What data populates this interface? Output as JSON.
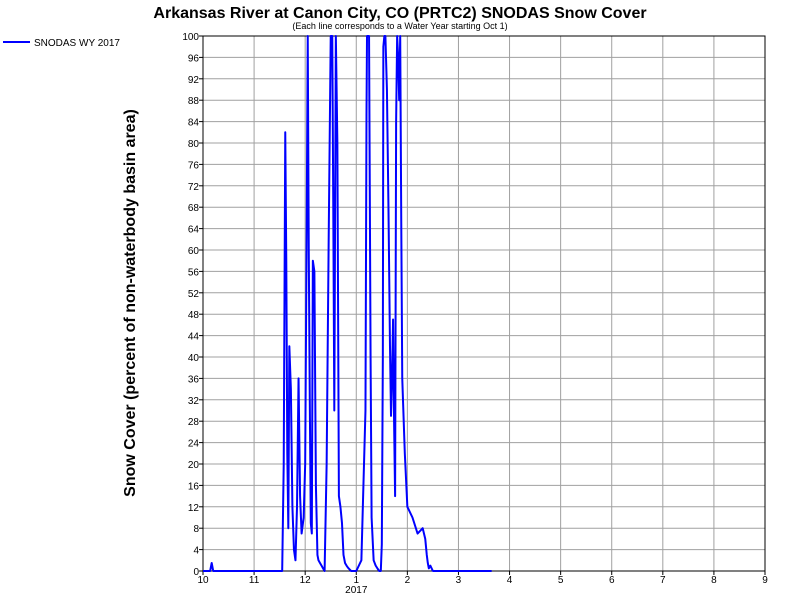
{
  "chart_data": {
    "type": "line",
    "title": "Arkansas River at Canon City, CO (PRTC2) SNODAS Snow Cover",
    "subtitle": "(Each line corresponds to a Water Year starting Oct 1)",
    "xlabel": "",
    "ylabel": "Snow Cover (percent of non-waterbody basin area)",
    "xlim": [
      10,
      21
    ],
    "ylim": [
      0,
      100
    ],
    "grid": true,
    "legend_position": "top-left",
    "x_ticks": [
      {
        "x": 10,
        "label": "10"
      },
      {
        "x": 11,
        "label": "11"
      },
      {
        "x": 12,
        "label": "12"
      },
      {
        "x": 13,
        "label": "1"
      },
      {
        "x": 14,
        "label": "2"
      },
      {
        "x": 15,
        "label": "3"
      },
      {
        "x": 16,
        "label": "4"
      },
      {
        "x": 17,
        "label": "5"
      },
      {
        "x": 18,
        "label": "6"
      },
      {
        "x": 19,
        "label": "7"
      },
      {
        "x": 20,
        "label": "8"
      },
      {
        "x": 21,
        "label": "9"
      }
    ],
    "x_sublabel": {
      "x": 13,
      "label": "2017"
    },
    "y_ticks": [
      0,
      4,
      8,
      12,
      16,
      20,
      24,
      28,
      32,
      36,
      40,
      44,
      48,
      52,
      56,
      60,
      64,
      68,
      72,
      76,
      80,
      84,
      88,
      92,
      96,
      100
    ],
    "series": [
      {
        "name": "SNODAS WY 2017",
        "color": "#0000ff",
        "x": [
          10.0,
          10.14,
          10.17,
          10.2,
          10.24,
          11.55,
          11.58,
          11.61,
          11.63,
          11.65,
          11.67,
          11.69,
          11.72,
          11.75,
          11.78,
          11.81,
          11.84,
          11.87,
          11.9,
          11.93,
          11.97,
          12.0,
          12.03,
          12.05,
          12.07,
          12.09,
          12.11,
          12.13,
          12.15,
          12.18,
          12.21,
          12.24,
          12.26,
          12.29,
          12.32,
          12.35,
          12.38,
          12.42,
          12.46,
          12.5,
          12.53,
          12.55,
          12.57,
          12.6,
          12.63,
          12.66,
          12.69,
          12.72,
          12.75,
          12.78,
          12.81,
          12.84,
          12.87,
          12.9,
          12.93,
          12.96,
          13.0,
          13.1,
          13.18,
          13.2,
          13.21,
          13.25,
          13.28,
          13.3,
          13.34,
          13.38,
          13.42,
          13.45,
          13.48,
          13.5,
          13.52,
          13.53,
          13.55,
          13.57,
          13.6,
          13.63,
          13.66,
          13.68,
          13.7,
          13.72,
          13.74,
          13.76,
          13.78,
          13.8,
          13.82,
          13.84,
          13.86,
          13.88,
          13.9,
          13.95,
          14.0,
          14.1,
          14.2,
          14.3,
          14.35,
          14.38,
          14.4,
          14.42,
          14.45,
          14.5,
          14.55,
          14.6,
          14.65,
          14.7,
          14.75,
          14.8,
          14.85,
          14.9,
          14.92,
          14.95,
          14.97,
          15.0,
          15.03,
          15.06,
          15.1,
          15.15,
          15.2,
          15.25,
          15.3,
          15.35,
          15.4,
          15.45,
          15.5,
          15.55,
          15.6,
          15.65
        ],
        "y": [
          0,
          0,
          1.5,
          0,
          0,
          0,
          20,
          82,
          58,
          22,
          8,
          42,
          34,
          12,
          4,
          2,
          12,
          36,
          14,
          7,
          10,
          20,
          65,
          100,
          60,
          32,
          9,
          7,
          58,
          56,
          16,
          3,
          2,
          1.5,
          1,
          0.5,
          0,
          20,
          62,
          100,
          100,
          68,
          30,
          100,
          80,
          14,
          12,
          9,
          3,
          1.5,
          1,
          0.6,
          0.3,
          0,
          0,
          0,
          0,
          2,
          30,
          85,
          100,
          100,
          40,
          10,
          2,
          1,
          0.4,
          0,
          0,
          5,
          40,
          98,
          100,
          100,
          90,
          68,
          42,
          29,
          36,
          47,
          28,
          14,
          84,
          100,
          96,
          88,
          100,
          66,
          36,
          22,
          12,
          10,
          7,
          8,
          6,
          3,
          1.5,
          0.5,
          1,
          0,
          0,
          0,
          0,
          0,
          0,
          0,
          0,
          0,
          0,
          0,
          0,
          0,
          0,
          0,
          0,
          0,
          0,
          0,
          0,
          0,
          0,
          0,
          0,
          0,
          0,
          0
        ]
      }
    ]
  }
}
